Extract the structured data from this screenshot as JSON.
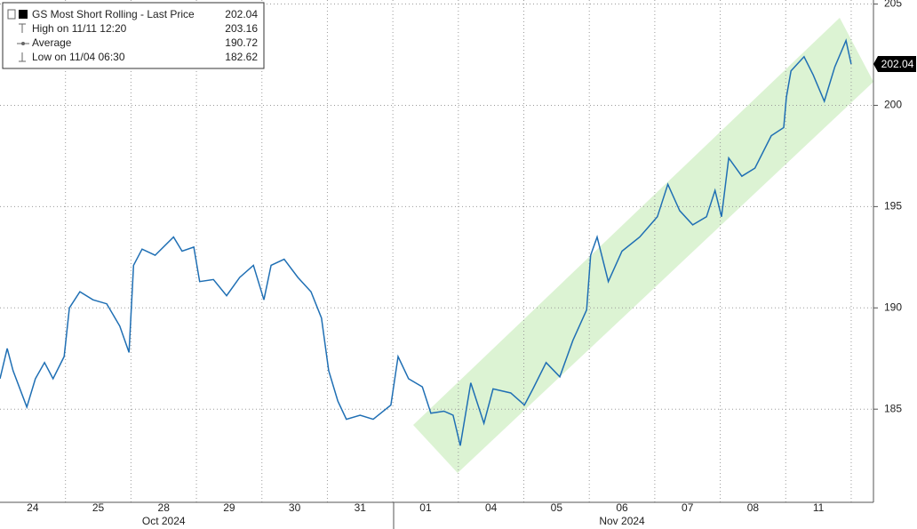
{
  "chart_data": {
    "type": "line",
    "legend": {
      "title": "GS Most Short Rolling - Last Price",
      "title_value": "202.04",
      "rows": [
        {
          "label": "High on 11/11 12:20",
          "value": "203.16"
        },
        {
          "label": "Average",
          "value": "190.72"
        },
        {
          "label": "Low on 11/04 06:30",
          "value": "182.62"
        }
      ]
    },
    "last_price_label": "202.04",
    "x": [
      0,
      0.11,
      0.2,
      0.41,
      0.54,
      0.68,
      0.81,
      0.98,
      1.06,
      1.22,
      1.42,
      1.63,
      1.83,
      1.97,
      2.04,
      2.17,
      2.37,
      2.65,
      2.78,
      2.96,
      3.05,
      3.26,
      3.46,
      3.66,
      3.87,
      4.03,
      4.14,
      4.34,
      4.55,
      4.75,
      4.91,
      5.02,
      5.16,
      5.29,
      5.5,
      5.7,
      5.97,
      6.08,
      6.24,
      6.45,
      6.58,
      6.78,
      6.92,
      7.03,
      7.19,
      7.39,
      7.53,
      7.8,
      8.01,
      8.14,
      8.34,
      8.55,
      8.75,
      8.96,
      9.02,
      9.12,
      9.29,
      9.5,
      9.77,
      10.04,
      10.2,
      10.38,
      10.58,
      10.79,
      10.92,
      11.02,
      11.13,
      11.33,
      11.53,
      11.78,
      11.97,
      12.01,
      12.08,
      12.28,
      12.42,
      12.59,
      12.75,
      12.92,
      13.0
    ],
    "series": [
      {
        "name": "GS Most Short Rolling",
        "color": "#1f6fb4",
        "values": [
          186.5,
          188.0,
          186.9,
          185.1,
          186.5,
          187.3,
          186.5,
          187.6,
          190.0,
          190.8,
          190.4,
          190.2,
          189.1,
          187.8,
          192.1,
          192.9,
          192.6,
          193.5,
          192.8,
          193.0,
          191.3,
          191.4,
          190.6,
          191.5,
          192.1,
          190.4,
          192.1,
          192.4,
          191.5,
          190.8,
          189.5,
          186.9,
          185.4,
          184.5,
          184.7,
          184.5,
          185.2,
          187.6,
          186.5,
          186.1,
          184.8,
          184.9,
          184.7,
          183.2,
          186.3,
          184.3,
          186.0,
          185.8,
          185.2,
          186.0,
          187.3,
          186.6,
          188.4,
          189.9,
          192.6,
          193.5,
          191.3,
          192.8,
          193.5,
          194.5,
          196.1,
          194.8,
          194.1,
          194.5,
          195.8,
          194.5,
          197.4,
          196.5,
          196.9,
          198.5,
          198.9,
          200.4,
          201.7,
          202.4,
          201.5,
          200.2,
          201.9,
          203.2,
          202.04
        ]
      }
    ],
    "xlim": [
      0,
      13.34
    ],
    "xticks": [
      {
        "value": 0.5,
        "label": "24"
      },
      {
        "value": 1.5,
        "label": "25"
      },
      {
        "value": 2.5,
        "label": "28"
      },
      {
        "value": 3.5,
        "label": "29"
      },
      {
        "value": 4.5,
        "label": "30"
      },
      {
        "value": 5.5,
        "label": "31"
      },
      {
        "value": 6.5,
        "label": "01"
      },
      {
        "value": 7.5,
        "label": "04"
      },
      {
        "value": 8.5,
        "label": "05"
      },
      {
        "value": 9.5,
        "label": "06"
      },
      {
        "value": 10.5,
        "label": "07"
      },
      {
        "value": 11.5,
        "label": "08"
      },
      {
        "value": 12.5,
        "label": "11"
      }
    ],
    "x_group_labels": [
      {
        "value": 2.5,
        "label": "Oct 2024"
      },
      {
        "value": 9.5,
        "label": "Nov 2024"
      }
    ],
    "ylim": [
      180.4,
      205.2
    ],
    "yticks": [
      185,
      190,
      195,
      200,
      205
    ],
    "grid": true
  }
}
